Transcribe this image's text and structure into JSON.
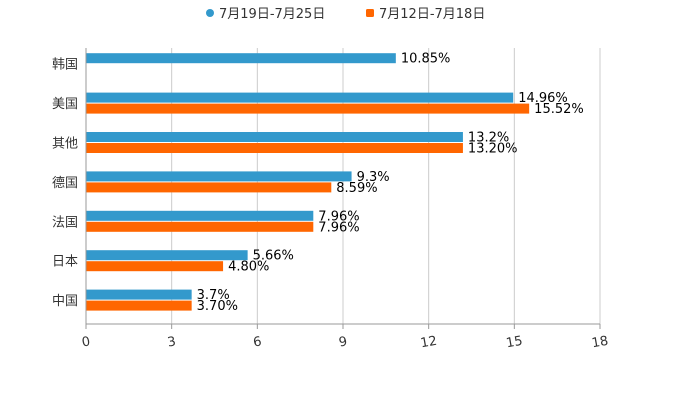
{
  "chart_data": {
    "type": "bar",
    "orientation": "horizontal",
    "title": "",
    "xlabel": "",
    "ylabel": "",
    "xlim": [
      0,
      18
    ],
    "ticks": [
      "0",
      "3",
      "6",
      "9",
      "12",
      "15",
      "18"
    ],
    "grid": true,
    "legend_position": "top",
    "categories": [
      "韩国",
      "美国",
      "其他",
      "德国",
      "法国",
      "日本",
      "中国"
    ],
    "series": [
      {
        "name": "7月19日-7月25日",
        "color": "#3399cc",
        "values": [
          10.85,
          14.96,
          13.2,
          9.3,
          7.96,
          5.66,
          3.7
        ],
        "labels": [
          "10.85%",
          "14.96%",
          "13.2%",
          "9.3%",
          "7.96%",
          "5.66%",
          "3.7%"
        ]
      },
      {
        "name": "7月12日-7月18日",
        "color": "#ff6600",
        "values": [
          null,
          15.52,
          13.2,
          8.59,
          7.96,
          4.8,
          3.7
        ],
        "labels": [
          null,
          "15.52%",
          "13.20%",
          "8.59%",
          "7.96%",
          "4.80%",
          "3.70%"
        ]
      }
    ]
  }
}
